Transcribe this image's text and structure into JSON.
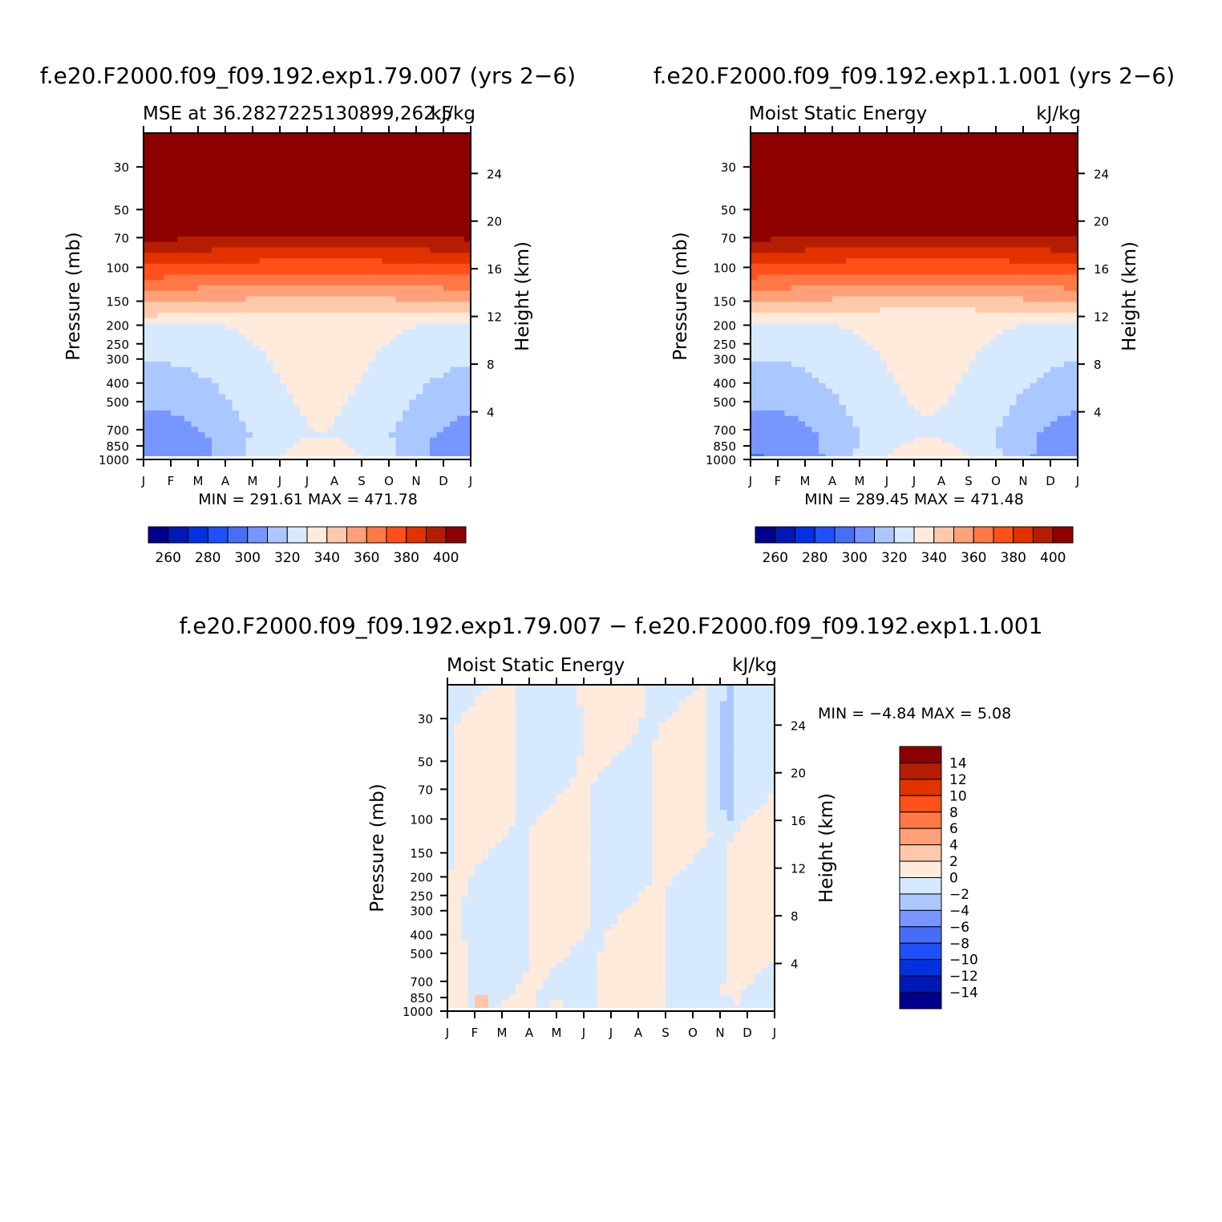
{
  "chart_data": [
    {
      "type": "contour",
      "title": "f.e20.F2000.f09_f09.192.exp1.79.007 (yrs 2−6)",
      "subtitle_left": "MSE at 36.2827225130899,262.5",
      "subtitle_right": "kJ/kg",
      "xlabel": "",
      "ylabel": "Pressure (mb)",
      "ylabel_right": "Height (km)",
      "x_ticks": [
        "J",
        "F",
        "M",
        "A",
        "M",
        "J",
        "J",
        "A",
        "S",
        "O",
        "N",
        "D",
        "J"
      ],
      "y_ticks": [
        30,
        50,
        70,
        100,
        150,
        200,
        250,
        300,
        400,
        500,
        700,
        850,
        1000
      ],
      "y_ticks_right": [
        24,
        20,
        16,
        12,
        8,
        4
      ],
      "ylim": [
        1000,
        20
      ],
      "y_scale": "log",
      "min_max_text": "MIN = 291.61  MAX = 471.78",
      "levels": [
        260,
        270,
        280,
        290,
        300,
        310,
        320,
        330,
        340,
        350,
        360,
        370,
        380,
        390,
        400
      ],
      "colorbar_labels": [
        "260",
        "280",
        "300",
        "320",
        "340",
        "360",
        "380",
        "400"
      ],
      "colors": [
        "#00008c",
        "#0019b4",
        "#0032e1",
        "#1e50ff",
        "#466ef5",
        "#7896ff",
        "#aac8ff",
        "#d7e9ff",
        "#ffeadb",
        "#ffc8aa",
        "#ffa078",
        "#ff7846",
        "#ff5019",
        "#e13200",
        "#b41e00",
        "#8c0000"
      ],
      "contour_type": "seasonal_cross_section"
    },
    {
      "type": "contour",
      "title": "f.e20.F2000.f09_f09.192.exp1.1.001 (yrs 2−6)",
      "subtitle_left": "Moist Static Energy",
      "subtitle_right": "kJ/kg",
      "xlabel": "",
      "ylabel": "Pressure (mb)",
      "ylabel_right": "Height (km)",
      "x_ticks": [
        "J",
        "F",
        "M",
        "A",
        "M",
        "J",
        "J",
        "A",
        "S",
        "O",
        "N",
        "D",
        "J"
      ],
      "y_ticks": [
        30,
        50,
        70,
        100,
        150,
        200,
        250,
        300,
        400,
        500,
        700,
        850,
        1000
      ],
      "y_ticks_right": [
        24,
        20,
        16,
        12,
        8,
        4
      ],
      "ylim": [
        1000,
        20
      ],
      "y_scale": "log",
      "min_max_text": "MIN = 289.45  MAX = 471.48",
      "levels": [
        260,
        270,
        280,
        290,
        300,
        310,
        320,
        330,
        340,
        350,
        360,
        370,
        380,
        390,
        400
      ],
      "colorbar_labels": [
        "260",
        "280",
        "300",
        "320",
        "340",
        "360",
        "380",
        "400"
      ],
      "colors": [
        "#00008c",
        "#0019b4",
        "#0032e1",
        "#1e50ff",
        "#466ef5",
        "#7896ff",
        "#aac8ff",
        "#d7e9ff",
        "#ffeadb",
        "#ffc8aa",
        "#ffa078",
        "#ff7846",
        "#ff5019",
        "#e13200",
        "#b41e00",
        "#8c0000"
      ]
    },
    {
      "type": "contour",
      "title": "f.e20.F2000.f09_f09.192.exp1.79.007 − f.e20.F2000.f09_f09.192.exp1.1.001",
      "subtitle_left": "Moist Static Energy",
      "subtitle_right": "kJ/kg",
      "xlabel": "",
      "ylabel": "Pressure (mb)",
      "ylabel_right": "Height (km)",
      "x_ticks": [
        "J",
        "F",
        "M",
        "A",
        "M",
        "J",
        "J",
        "A",
        "S",
        "O",
        "N",
        "D",
        "J"
      ],
      "y_ticks": [
        30,
        50,
        70,
        100,
        150,
        200,
        250,
        300,
        400,
        500,
        700,
        850,
        1000
      ],
      "y_ticks_right": [
        24,
        20,
        16,
        12,
        8,
        4
      ],
      "ylim": [
        1000,
        20
      ],
      "y_scale": "log",
      "min_max_text": "MIN =   −4.84  MAX =     5.08",
      "levels": [
        -14,
        -12,
        -10,
        -8,
        -6,
        -4,
        -2,
        0,
        2,
        4,
        6,
        8,
        10,
        12,
        14
      ],
      "colorbar_labels": [
        "14",
        "12",
        "10",
        "8",
        "6",
        "4",
        "2",
        "0",
        "−2",
        "−4",
        "−6",
        "−8",
        "−10",
        "−12",
        "−14"
      ],
      "colors": [
        "#00008c",
        "#0019b4",
        "#0032e1",
        "#1e50ff",
        "#466ef5",
        "#7896ff",
        "#aac8ff",
        "#d7e9ff",
        "#ffeadb",
        "#ffc8aa",
        "#ffa078",
        "#ff7846",
        "#ff5019",
        "#e13200",
        "#b41e00",
        "#8c0000"
      ]
    }
  ]
}
